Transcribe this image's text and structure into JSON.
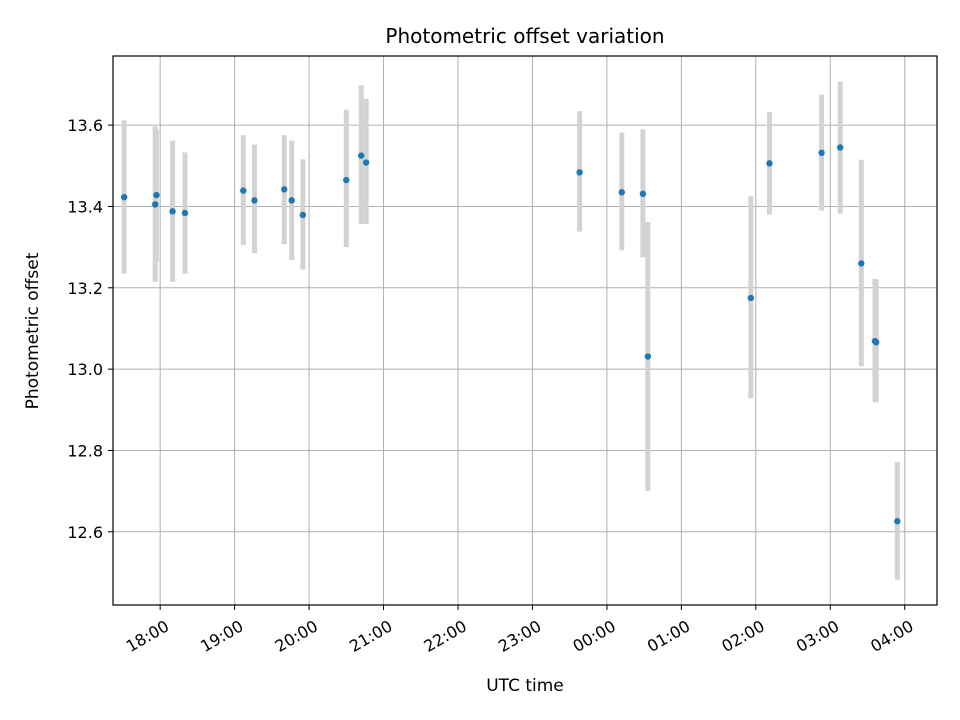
{
  "chart_data": {
    "type": "scatter",
    "title": "Photometric offset variation",
    "xlabel": "UTC time",
    "ylabel": "Photometric offset",
    "grid": true,
    "x_is_time": true,
    "xlim": [
      "17:22",
      "04:26"
    ],
    "ylim": [
      12.42,
      13.77
    ],
    "x_ticks": [
      "18:00",
      "19:00",
      "20:00",
      "21:00",
      "22:00",
      "23:00",
      "00:00",
      "01:00",
      "02:00",
      "03:00",
      "04:00"
    ],
    "y_ticks": [
      "12.6",
      "12.8",
      "13.0",
      "13.2",
      "13.4",
      "13.6"
    ],
    "colors": {
      "points": "#1f77b4",
      "errorbars": "#d3d3d3",
      "grid": "#b0b0b0"
    },
    "points": [
      {
        "x": "17:31",
        "y": 13.423,
        "err_low": 13.235,
        "err_high": 13.612
      },
      {
        "x": "17:56",
        "y": 13.405,
        "err_low": 13.215,
        "err_high": 13.597
      },
      {
        "x": "17:57",
        "y": 13.428,
        "err_low": 13.265,
        "err_high": 13.588
      },
      {
        "x": "18:10",
        "y": 13.388,
        "err_low": 13.215,
        "err_high": 13.562
      },
      {
        "x": "18:20",
        "y": 13.384,
        "err_low": 13.235,
        "err_high": 13.533
      },
      {
        "x": "19:07",
        "y": 13.439,
        "err_low": 13.305,
        "err_high": 13.575
      },
      {
        "x": "19:16",
        "y": 13.415,
        "err_low": 13.285,
        "err_high": 13.552
      },
      {
        "x": "19:40",
        "y": 13.442,
        "err_low": 13.307,
        "err_high": 13.575
      },
      {
        "x": "19:46",
        "y": 13.415,
        "err_low": 13.268,
        "err_high": 13.562
      },
      {
        "x": "19:55",
        "y": 13.379,
        "err_low": 13.245,
        "err_high": 13.516
      },
      {
        "x": "20:30",
        "y": 13.465,
        "err_low": 13.3,
        "err_high": 13.638
      },
      {
        "x": "20:42",
        "y": 13.525,
        "err_low": 13.357,
        "err_high": 13.698
      },
      {
        "x": "20:46",
        "y": 13.508,
        "err_low": 13.357,
        "err_high": 13.665
      },
      {
        "x": "23:38",
        "y": 13.484,
        "err_low": 13.338,
        "err_high": 13.634
      },
      {
        "x": "00:12",
        "y": 13.435,
        "err_low": 13.292,
        "err_high": 13.582
      },
      {
        "x": "00:29",
        "y": 13.431,
        "err_low": 13.275,
        "err_high": 13.59
      },
      {
        "x": "00:33",
        "y": 13.031,
        "err_low": 12.7,
        "err_high": 13.362
      },
      {
        "x": "01:56",
        "y": 13.175,
        "err_low": 12.928,
        "err_high": 13.425
      },
      {
        "x": "02:11",
        "y": 13.506,
        "err_low": 13.38,
        "err_high": 13.632
      },
      {
        "x": "02:53",
        "y": 13.532,
        "err_low": 13.39,
        "err_high": 13.675
      },
      {
        "x": "03:08",
        "y": 13.545,
        "err_low": 13.382,
        "err_high": 13.707
      },
      {
        "x": "03:25",
        "y": 13.26,
        "err_low": 13.007,
        "err_high": 13.515
      },
      {
        "x": "03:36",
        "y": 13.069,
        "err_low": 12.92,
        "err_high": 13.222
      },
      {
        "x": "03:37",
        "y": 13.066,
        "err_low": 12.918,
        "err_high": 13.22
      },
      {
        "x": "03:54",
        "y": 12.626,
        "err_low": 12.482,
        "err_high": 12.772
      }
    ]
  }
}
